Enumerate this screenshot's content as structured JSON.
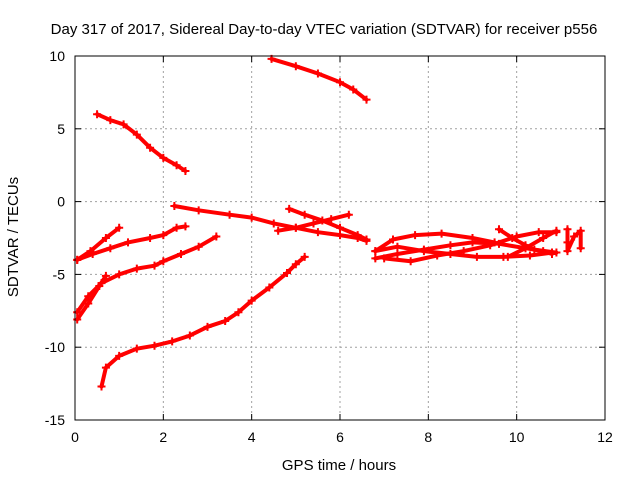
{
  "chart_data": {
    "type": "scatter",
    "title": "Day 317 of 2017, Sidereal Day-to-day VTEC variation (SDTVAR) for receiver p556",
    "xlabel": "GPS time / hours",
    "ylabel": "SDTVAR / TECUs",
    "xlim": [
      0,
      12
    ],
    "ylim": [
      -15,
      10
    ],
    "xticks": [
      0,
      2,
      4,
      6,
      8,
      10,
      12
    ],
    "yticks": [
      -15,
      -10,
      -5,
      0,
      5,
      10
    ],
    "xtick_labels": [
      "0",
      "2",
      "4",
      "6",
      "8",
      "10",
      "12"
    ],
    "ytick_labels": [
      "-15",
      "-10",
      "-5",
      "0",
      "5",
      "10"
    ],
    "grid": true,
    "marker": "+",
    "color": "#ff0000",
    "series": [
      {
        "points": [
          [
            4.45,
            9.8
          ],
          [
            5.0,
            9.3
          ],
          [
            5.5,
            8.8
          ],
          [
            6.0,
            8.2
          ],
          [
            6.3,
            7.7
          ],
          [
            6.6,
            7.0
          ]
        ]
      },
      {
        "points": [
          [
            0.5,
            6.0
          ],
          [
            0.8,
            5.6
          ],
          [
            1.1,
            5.3
          ],
          [
            1.4,
            4.6
          ],
          [
            1.7,
            3.7
          ],
          [
            2.0,
            3.0
          ],
          [
            2.3,
            2.5
          ],
          [
            2.5,
            2.1
          ]
        ]
      },
      {
        "points": [
          [
            2.25,
            -0.3
          ],
          [
            2.8,
            -0.6
          ],
          [
            3.5,
            -0.9
          ],
          [
            4.0,
            -1.1
          ],
          [
            4.5,
            -1.5
          ],
          [
            5.0,
            -1.8
          ],
          [
            5.5,
            -2.1
          ],
          [
            6.0,
            -2.3
          ],
          [
            6.4,
            -2.5
          ],
          [
            6.6,
            -2.7
          ]
        ]
      },
      {
        "points": [
          [
            4.85,
            -0.5
          ],
          [
            5.2,
            -0.9
          ],
          [
            5.6,
            -1.3
          ],
          [
            6.0,
            -1.8
          ],
          [
            6.4,
            -2.3
          ],
          [
            6.6,
            -2.6
          ]
        ]
      },
      {
        "points": [
          [
            4.6,
            -2.0
          ],
          [
            5.0,
            -1.8
          ],
          [
            5.4,
            -1.5
          ],
          [
            5.8,
            -1.2
          ],
          [
            6.2,
            -0.9
          ]
        ]
      },
      {
        "points": [
          [
            0.05,
            -4.0
          ],
          [
            0.35,
            -3.4
          ],
          [
            0.7,
            -2.5
          ],
          [
            1.0,
            -1.8
          ]
        ]
      },
      {
        "points": [
          [
            0.05,
            -4.0
          ],
          [
            0.4,
            -3.6
          ],
          [
            0.8,
            -3.2
          ],
          [
            1.2,
            -2.8
          ],
          [
            1.7,
            -2.5
          ],
          [
            2.0,
            -2.3
          ],
          [
            2.3,
            -1.8
          ],
          [
            2.5,
            -1.7
          ]
        ]
      },
      {
        "points": [
          [
            0.05,
            -7.6
          ],
          [
            0.3,
            -6.5
          ],
          [
            0.6,
            -5.6
          ],
          [
            1.0,
            -5.0
          ],
          [
            1.4,
            -4.6
          ],
          [
            1.8,
            -4.4
          ],
          [
            2.0,
            -4.1
          ],
          [
            2.4,
            -3.6
          ],
          [
            2.8,
            -3.1
          ],
          [
            3.2,
            -2.4
          ]
        ]
      },
      {
        "points": [
          [
            0.05,
            -8.1
          ],
          [
            0.3,
            -7.0
          ],
          [
            0.55,
            -5.8
          ],
          [
            0.7,
            -5.1
          ]
        ]
      },
      {
        "points": [
          [
            0.6,
            -12.7
          ],
          [
            0.7,
            -11.4
          ],
          [
            1.0,
            -10.6
          ],
          [
            1.4,
            -10.1
          ],
          [
            1.8,
            -9.9
          ],
          [
            2.2,
            -9.6
          ],
          [
            2.6,
            -9.2
          ],
          [
            3.0,
            -8.6
          ],
          [
            3.4,
            -8.2
          ],
          [
            3.7,
            -7.6
          ],
          [
            4.0,
            -6.8
          ],
          [
            4.4,
            -5.9
          ],
          [
            4.8,
            -4.9
          ],
          [
            5.0,
            -4.3
          ],
          [
            5.2,
            -3.8
          ]
        ]
      },
      {
        "points": [
          [
            6.8,
            -3.4
          ],
          [
            7.2,
            -2.6
          ],
          [
            7.7,
            -2.3
          ],
          [
            8.3,
            -2.2
          ],
          [
            9.0,
            -2.5
          ],
          [
            9.5,
            -2.8
          ]
        ]
      },
      {
        "points": [
          [
            6.8,
            -3.9
          ],
          [
            7.3,
            -3.6
          ],
          [
            7.9,
            -3.3
          ],
          [
            8.5,
            -3.0
          ],
          [
            9.0,
            -2.8
          ],
          [
            9.6,
            -2.9
          ],
          [
            10.2,
            -3.2
          ],
          [
            10.6,
            -3.4
          ],
          [
            10.8,
            -3.6
          ]
        ]
      },
      {
        "points": [
          [
            6.8,
            -3.4
          ],
          [
            7.3,
            -3.1
          ],
          [
            7.9,
            -3.4
          ],
          [
            8.5,
            -3.6
          ],
          [
            9.1,
            -3.8
          ],
          [
            9.7,
            -3.8
          ],
          [
            10.3,
            -3.7
          ],
          [
            10.8,
            -3.5
          ]
        ]
      },
      {
        "points": [
          [
            7.0,
            -3.9
          ],
          [
            7.6,
            -4.1
          ],
          [
            8.2,
            -3.7
          ],
          [
            8.8,
            -3.4
          ],
          [
            9.4,
            -3.0
          ],
          [
            10.0,
            -2.4
          ],
          [
            10.5,
            -2.1
          ],
          [
            10.9,
            -2.1
          ]
        ]
      },
      {
        "points": [
          [
            9.6,
            -1.9
          ],
          [
            9.9,
            -2.5
          ],
          [
            10.2,
            -3.0
          ],
          [
            10.4,
            -3.3
          ],
          [
            10.9,
            -3.5
          ]
        ]
      },
      {
        "points": [
          [
            9.8,
            -3.8
          ],
          [
            10.2,
            -3.2
          ],
          [
            10.6,
            -2.5
          ],
          [
            10.9,
            -2.0
          ]
        ]
      },
      {
        "points": [
          [
            11.15,
            -1.9
          ],
          [
            11.15,
            -2.8
          ],
          [
            11.15,
            -3.4
          ],
          [
            11.3,
            -2.4
          ],
          [
            11.45,
            -2.0
          ],
          [
            11.45,
            -3.2
          ]
        ]
      }
    ]
  }
}
